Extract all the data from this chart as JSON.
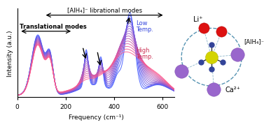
{
  "xlabel": "Frequency (cm⁻¹)",
  "ylabel": "Intensity (a.u.)",
  "xlim": [
    0,
    650
  ],
  "ylim_min": 0,
  "xticks": [
    0,
    200,
    400,
    600
  ],
  "n_curves": 16,
  "color_low": [
    0.25,
    0.35,
    1.0
  ],
  "color_high": [
    1.0,
    0.35,
    0.55
  ],
  "ann_translational": "Translational modes",
  "ann_librational": "[AlH₄]⁻ librational modes",
  "ann_low": "Low\nTemp.",
  "ann_high": "High\nTemp.",
  "mol_Li_label": "Li⁺",
  "mol_AlH4_label": "[AlH₄]⁻",
  "mol_Ca_label": "Ca²⁺",
  "background_color": "#ffffff"
}
